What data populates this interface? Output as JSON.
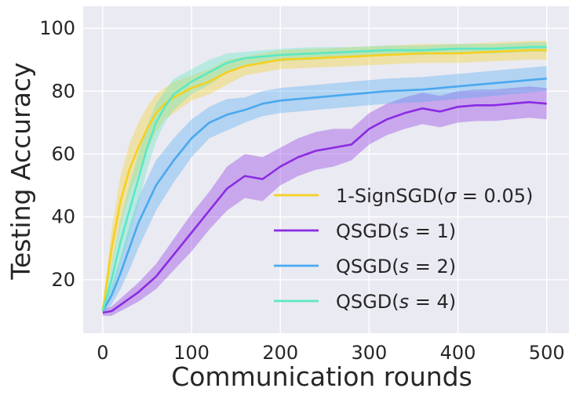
{
  "chart_data": {
    "type": "line",
    "xlabel": "Communication rounds",
    "ylabel": "Testing Accuracy",
    "xlim": [
      -22,
      525
    ],
    "ylim": [
      3,
      107
    ],
    "xticks": [
      "0",
      "100",
      "200",
      "300",
      "400",
      "500"
    ],
    "yticks": [
      "20",
      "40",
      "60",
      "80",
      "100"
    ],
    "grid": true,
    "legend_position": "lower-right",
    "series": [
      {
        "name": "1-SignSGD(σ = 0.05)",
        "legend_prefix": "1-SignSGD(",
        "legend_symbol": "σ",
        "legend_suffix": " = 0.05)",
        "color": "#f5d020",
        "x": [
          0,
          10,
          20,
          30,
          40,
          50,
          60,
          70,
          80,
          100,
          120,
          140,
          160,
          180,
          200,
          240,
          280,
          320,
          360,
          400,
          440,
          480,
          500
        ],
        "y": [
          10,
          30,
          45,
          55,
          62,
          68,
          73,
          76,
          78,
          81,
          83,
          86,
          88,
          89,
          90,
          90.5,
          91,
          91.5,
          92,
          92,
          92.5,
          93,
          93
        ],
        "band": [
          1,
          6,
          8,
          8,
          8,
          7,
          6,
          5,
          5,
          4,
          4,
          4,
          3,
          3,
          3,
          3,
          3,
          3,
          3,
          3,
          3,
          3,
          3
        ]
      },
      {
        "name": "QSGD(s = 1)",
        "legend_prefix": "QSGD(",
        "legend_symbol": "s",
        "legend_suffix": " = 1)",
        "color": "#8a2be2",
        "x": [
          0,
          10,
          20,
          40,
          60,
          80,
          100,
          120,
          140,
          160,
          180,
          200,
          220,
          240,
          260,
          280,
          300,
          320,
          340,
          360,
          380,
          400,
          420,
          440,
          460,
          480,
          500
        ],
        "y": [
          9.5,
          10,
          12,
          16,
          21,
          28,
          35,
          42,
          49,
          53,
          52,
          56,
          59,
          61,
          62,
          63,
          68,
          71,
          73,
          74.5,
          73.5,
          75,
          75.5,
          75.5,
          76,
          76.5,
          76
        ],
        "band": [
          1,
          1.5,
          2,
          3,
          4,
          5,
          6,
          6,
          7,
          7,
          7,
          6,
          6,
          6,
          6,
          5,
          5,
          5,
          5,
          5,
          5,
          5,
          5,
          5,
          5,
          5,
          5
        ]
      },
      {
        "name": "QSGD(s = 2)",
        "legend_prefix": "QSGD(",
        "legend_symbol": "s",
        "legend_suffix": " = 2)",
        "color": "#4aa8f0",
        "x": [
          0,
          10,
          20,
          30,
          40,
          60,
          80,
          100,
          120,
          140,
          160,
          180,
          200,
          240,
          280,
          320,
          360,
          400,
          440,
          480,
          500
        ],
        "y": [
          10,
          15,
          22,
          30,
          38,
          50,
          58,
          65,
          70,
          72.5,
          74,
          76,
          77,
          78,
          79,
          80,
          80.5,
          81.5,
          82.5,
          83.5,
          84
        ],
        "band": [
          1,
          3,
          5,
          7,
          8,
          8,
          7,
          6,
          5,
          5,
          4,
          4,
          4,
          4,
          4,
          4,
          4,
          4,
          4,
          4,
          4
        ]
      },
      {
        "name": "QSGD(s = 4)",
        "legend_prefix": "QSGD(",
        "legend_symbol": "s",
        "legend_suffix": " = 4)",
        "color": "#5de8c2",
        "x": [
          0,
          10,
          20,
          30,
          40,
          50,
          60,
          70,
          80,
          100,
          120,
          140,
          160,
          200,
          240,
          280,
          320,
          360,
          400,
          440,
          480,
          500
        ],
        "y": [
          10,
          20,
          32,
          42,
          52,
          62,
          70,
          75,
          79,
          83,
          86,
          89,
          90.5,
          91.5,
          92,
          92.5,
          93,
          93,
          93.5,
          93.5,
          94,
          94
        ],
        "band": [
          1,
          5,
          7,
          8,
          8,
          7,
          6,
          5,
          5,
          4,
          4,
          3,
          2,
          2,
          2,
          1.5,
          1.5,
          1.5,
          1.5,
          1.5,
          1.5,
          1.5
        ]
      }
    ]
  }
}
